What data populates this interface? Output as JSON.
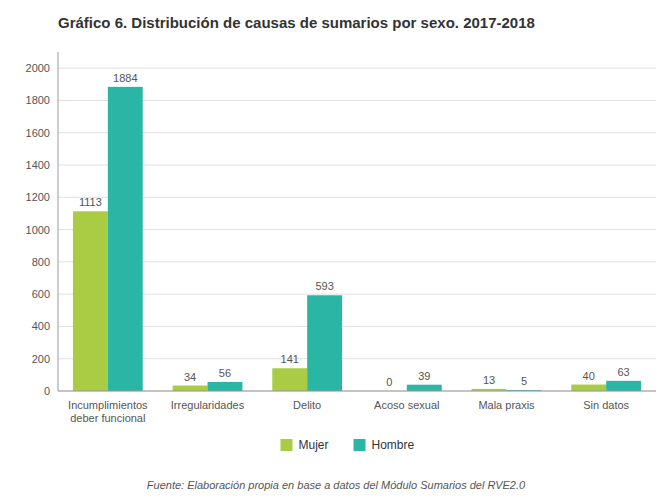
{
  "chart_data": {
    "type": "bar",
    "title": "Gráfico 6. Distribución de causas de sumarios por sexo. 2017-2018",
    "categories": [
      "Incumplimientos\ndeber funcional",
      "Irregularidades",
      "Delito",
      "Acoso sexual",
      "Mala praxis",
      "Sin datos"
    ],
    "series": [
      {
        "name": "Mujer",
        "color": "#aacc44",
        "values": [
          1113,
          34,
          141,
          0,
          13,
          40
        ]
      },
      {
        "name": "Hombre",
        "color": "#2ab5a5",
        "values": [
          1884,
          56,
          593,
          39,
          5,
          63
        ]
      }
    ],
    "ylim": [
      0,
      2100
    ],
    "yticks": [
      0,
      200,
      400,
      600,
      800,
      1000,
      1200,
      1400,
      1600,
      1800,
      2000
    ],
    "grid": true,
    "legend": "bottom",
    "data_labels": true,
    "annotations": [
      "Fuente: Elaboración propia en base a datos del Módulo Sumarios del RVE2.0"
    ]
  }
}
